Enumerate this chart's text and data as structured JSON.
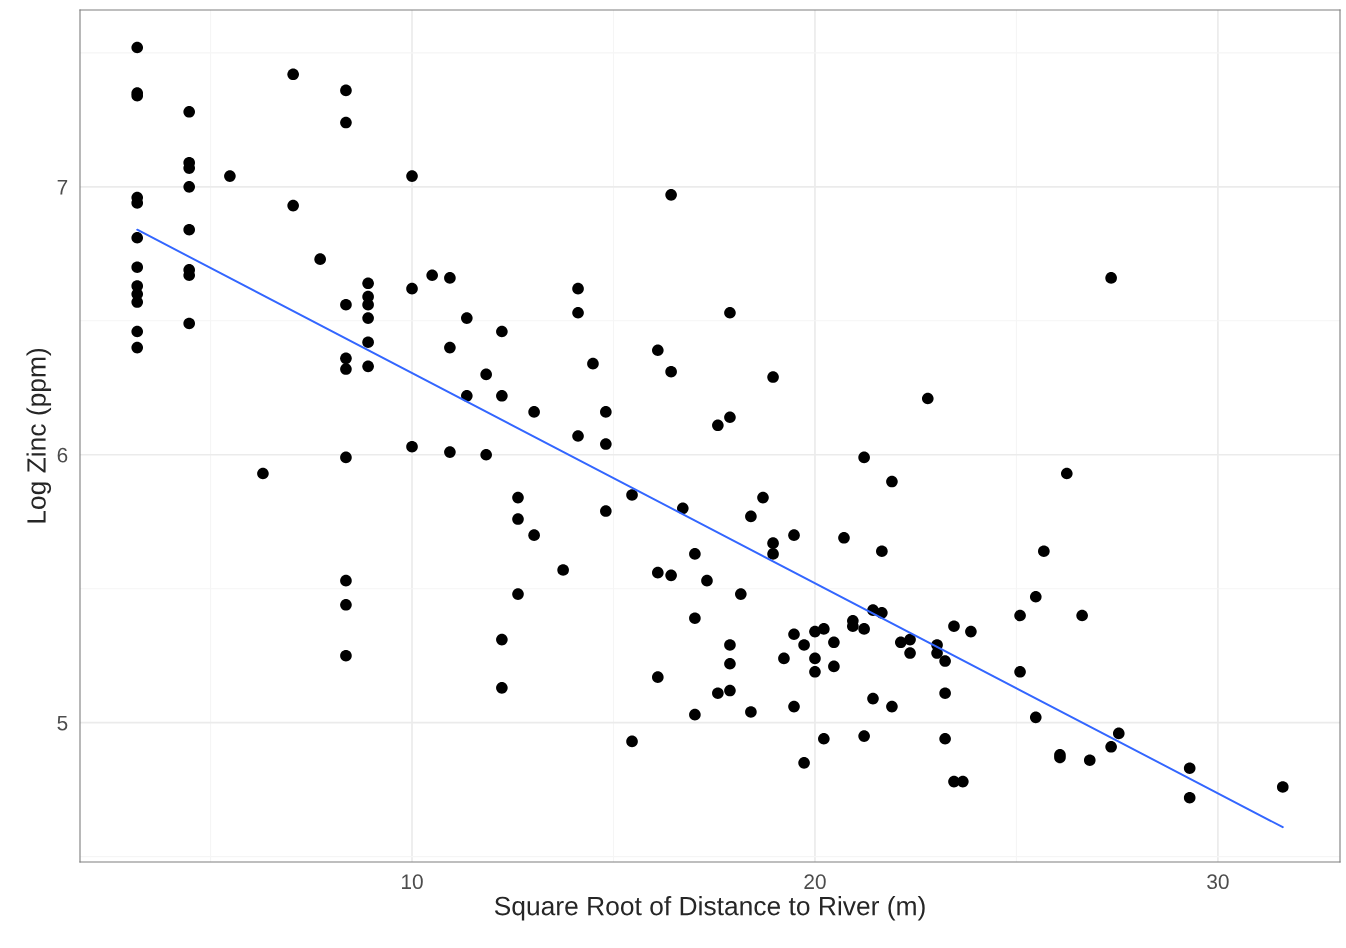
{
  "chart_data": {
    "type": "scatter",
    "xlabel": "Square Root of Distance to River (m)",
    "ylabel": "Log Zinc (ppm)",
    "xlim": [
      1.76,
      33.03
    ],
    "ylim": [
      4.48,
      7.66
    ],
    "xticks": [
      10,
      20,
      30
    ],
    "yticks": [
      5,
      6,
      7
    ],
    "grid": true,
    "legend": false,
    "series": [
      {
        "color": "#000000",
        "marker": "circle",
        "x": [
          3.18,
          3.18,
          3.18,
          3.18,
          3.18,
          3.18,
          3.18,
          3.18,
          3.18,
          3.18,
          3.18,
          3.18,
          4.47,
          4.47,
          4.47,
          4.47,
          4.47,
          4.47,
          4.47,
          4.47,
          5.48,
          6.3,
          7.05,
          7.05,
          7.72,
          8.36,
          8.36,
          8.36,
          8.36,
          8.36,
          8.36,
          8.36,
          8.36,
          8.36,
          8.91,
          8.91,
          8.91,
          8.91,
          8.91,
          8.91,
          10.0,
          10.0,
          10.0,
          10.5,
          10.94,
          10.94,
          10.94,
          11.36,
          11.36,
          11.84,
          11.84,
          12.23,
          12.23,
          12.23,
          12.23,
          12.63,
          12.63,
          12.63,
          13.03,
          13.03,
          13.75,
          14.12,
          14.12,
          14.12,
          14.49,
          14.81,
          14.81,
          14.81,
          15.46,
          15.46,
          16.1,
          16.1,
          16.1,
          16.43,
          16.43,
          16.43,
          16.72,
          17.02,
          17.02,
          17.02,
          17.32,
          17.59,
          17.59,
          17.89,
          17.89,
          17.89,
          17.89,
          17.89,
          18.16,
          18.41,
          18.41,
          18.71,
          18.96,
          18.96,
          18.96,
          19.23,
          19.48,
          19.48,
          19.48,
          19.73,
          19.73,
          20.0,
          20.0,
          20.0,
          20.22,
          20.22,
          20.47,
          20.47,
          20.72,
          20.94,
          20.94,
          21.22,
          21.22,
          21.22,
          21.44,
          21.44,
          21.66,
          21.66,
          21.91,
          21.91,
          22.13,
          22.36,
          22.36,
          22.8,
          23.03,
          23.03,
          23.23,
          23.23,
          23.23,
          23.45,
          23.45,
          23.67,
          23.87,
          25.09,
          25.09,
          25.48,
          25.48,
          25.68,
          26.25,
          26.63,
          26.08,
          26.08,
          26.82,
          27.35,
          27.35,
          27.54,
          29.3,
          29.3,
          31.61
        ],
        "values": [
          7.52,
          7.35,
          7.34,
          6.96,
          6.94,
          6.81,
          6.7,
          6.63,
          6.6,
          6.57,
          6.46,
          6.4,
          7.28,
          7.09,
          7.07,
          7.0,
          6.84,
          6.69,
          6.67,
          6.49,
          7.04,
          5.93,
          7.42,
          6.93,
          6.73,
          7.36,
          7.24,
          6.56,
          6.36,
          6.32,
          5.99,
          5.53,
          5.44,
          5.25,
          6.64,
          6.59,
          6.56,
          6.51,
          6.42,
          6.33,
          7.04,
          6.62,
          6.03,
          6.67,
          6.66,
          6.4,
          6.01,
          6.51,
          6.22,
          6.3,
          6.0,
          6.46,
          6.22,
          5.31,
          5.13,
          5.84,
          5.76,
          5.48,
          5.7,
          6.16,
          5.57,
          6.62,
          6.53,
          6.07,
          6.34,
          6.16,
          6.04,
          5.79,
          5.85,
          4.93,
          6.39,
          5.56,
          5.17,
          6.97,
          6.31,
          5.55,
          5.8,
          5.63,
          5.39,
          5.03,
          5.53,
          6.11,
          5.11,
          6.53,
          6.14,
          5.29,
          5.22,
          5.12,
          5.48,
          5.77,
          5.04,
          5.84,
          6.29,
          5.67,
          5.63,
          5.24,
          5.7,
          5.33,
          5.06,
          5.29,
          4.85,
          5.34,
          5.24,
          5.19,
          5.35,
          4.94,
          5.3,
          5.21,
          5.69,
          5.38,
          5.36,
          5.99,
          5.35,
          4.95,
          5.42,
          5.09,
          5.64,
          5.41,
          5.9,
          5.06,
          5.3,
          5.31,
          5.26,
          6.21,
          5.29,
          5.26,
          5.23,
          5.11,
          4.94,
          5.36,
          4.78,
          4.78,
          5.34,
          5.4,
          5.19,
          5.47,
          5.02,
          5.64,
          5.93,
          5.4,
          4.88,
          4.87,
          4.86,
          4.91,
          6.66,
          4.96,
          4.83,
          4.72,
          4.76
        ]
      },
      {
        "type": "line",
        "color": "#3366ff",
        "marker": "none",
        "line_style": "solid",
        "x": [
          3.18,
          31.61
        ],
        "values": [
          6.84,
          4.61
        ]
      }
    ]
  }
}
